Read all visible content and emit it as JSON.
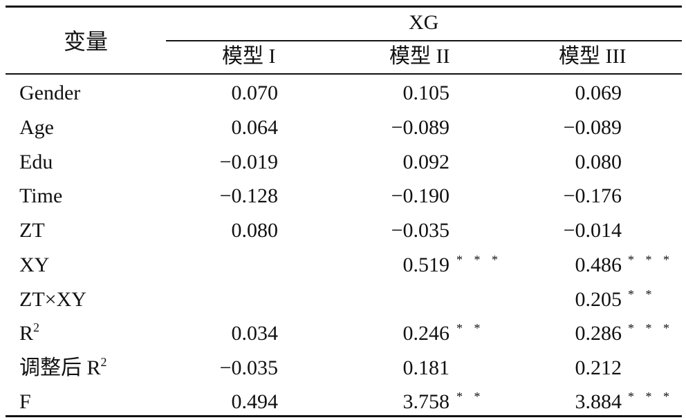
{
  "header": {
    "variable_label": "变量",
    "group_label": "XG",
    "models": [
      "模型 I",
      "模型 II",
      "模型 III"
    ]
  },
  "rows": [
    {
      "label": "Gender",
      "v1": "0.070",
      "v2": "0.105",
      "s2": "",
      "v3": "0.069",
      "s3": ""
    },
    {
      "label": "Age",
      "v1": "0.064",
      "v2": "−0.089",
      "s2": "",
      "v3": "−0.089",
      "s3": ""
    },
    {
      "label": "Edu",
      "v1": "−0.019",
      "v2": "0.092",
      "s2": "",
      "v3": "0.080",
      "s3": ""
    },
    {
      "label": "Time",
      "v1": "−0.128",
      "v2": "−0.190",
      "s2": "",
      "v3": "−0.176",
      "s3": ""
    },
    {
      "label": "ZT",
      "v1": "0.080",
      "v2": "−0.035",
      "s2": "",
      "v3": "−0.014",
      "s3": ""
    },
    {
      "label": "XY",
      "v1": "",
      "v2": "0.519",
      "s2": "* * *",
      "v3": "0.486",
      "s3": "* * *"
    },
    {
      "label": "ZT×XY",
      "v1": "",
      "v2": "",
      "s2": "",
      "v3": "0.205",
      "s3": "* *"
    },
    {
      "label": "R",
      "label_sup": "2",
      "v1": "0.034",
      "v2": "0.246",
      "s2": "* *",
      "v3": "0.286",
      "s3": "* * *"
    },
    {
      "label": "调整后 R",
      "label_sup": "2",
      "v1": "−0.035",
      "v2": "0.181",
      "s2": "",
      "v3": "0.212",
      "s3": ""
    },
    {
      "label": "F",
      "v1": "0.494",
      "v2": "3.758",
      "s2": "* *",
      "v3": "3.884",
      "s3": "* * *"
    }
  ]
}
